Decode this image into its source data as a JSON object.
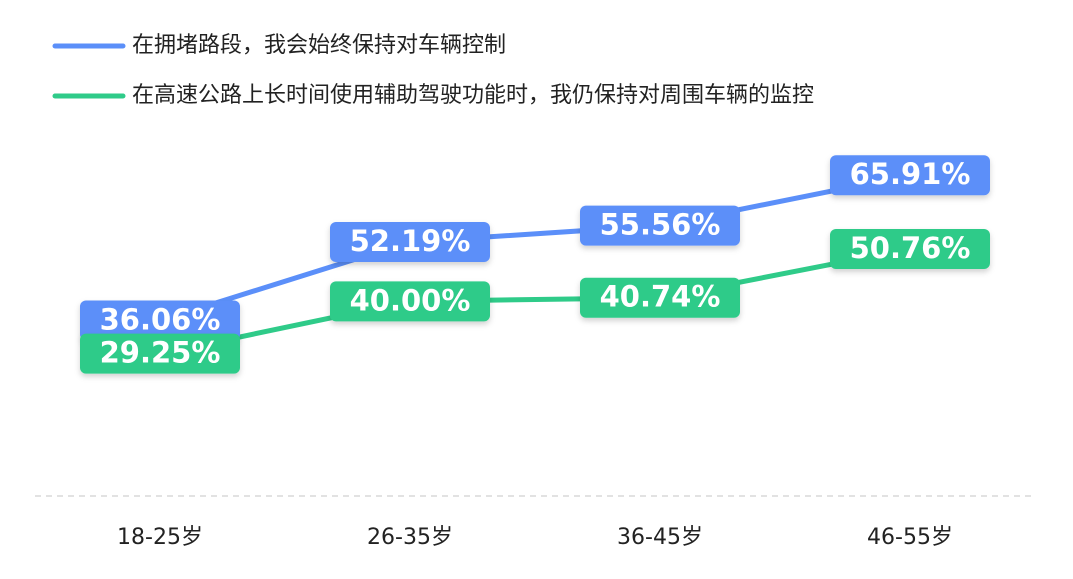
{
  "chart_data": {
    "type": "line",
    "categories": [
      "18-25岁",
      "26-35岁",
      "36-45岁",
      "46-55岁"
    ],
    "series": [
      {
        "name": "在拥堵路段，我会始终保持对车辆控制",
        "color": "#5b8ff9",
        "values": [
          36.06,
          52.19,
          55.56,
          65.91
        ],
        "value_labels": [
          "36.06%",
          "52.19%",
          "55.56%",
          "65.91%"
        ]
      },
      {
        "name": "在高速公路上长时间使用辅助驾驶功能时，我仍保持对周围车辆的监控",
        "color": "#2fcb89",
        "values": [
          29.25,
          40.0,
          40.74,
          50.76
        ],
        "value_labels": [
          "29.25%",
          "40.00%",
          "40.74%",
          "50.76%"
        ]
      }
    ],
    "ylim": [
      0,
      75
    ]
  }
}
